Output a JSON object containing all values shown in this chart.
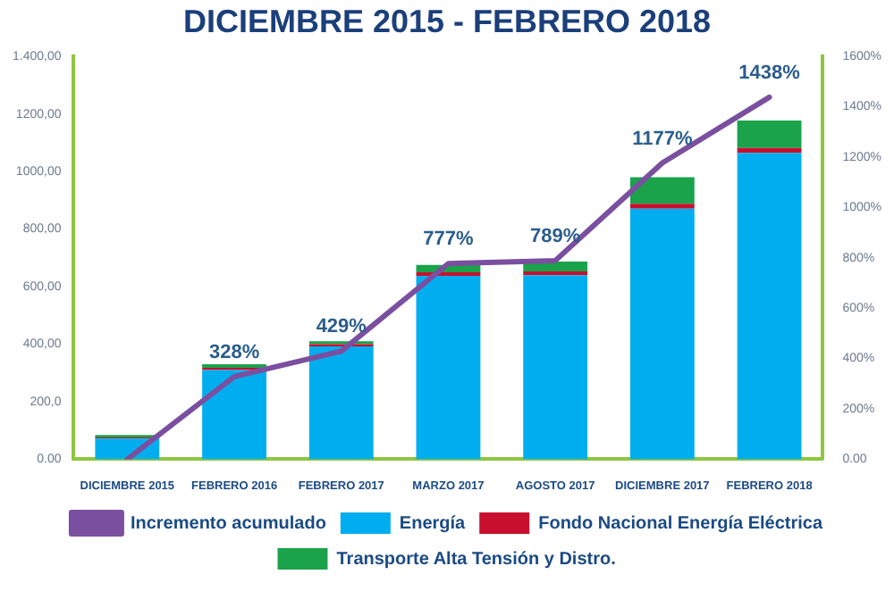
{
  "chart_data": {
    "type": "bar",
    "title": "DICIEMBRE 2015 - FEBRERO 2018",
    "stacked": true,
    "categories": [
      "DICIEMBRE 2015",
      "FEBRERO 2016",
      "FEBRERO 2017",
      "MARZO 2017",
      "AGOSTO 2017",
      "DICIEMBRE 2017",
      "FEBRERO 2018"
    ],
    "series": [
      {
        "name": "Energía",
        "color": "#00aeef",
        "values": [
          72,
          310,
          392,
          637,
          640,
          871,
          1065
        ]
      },
      {
        "name": "Fondo Nacional Energía Eléctrica",
        "color": "#c8102e",
        "values": [
          4,
          8,
          8,
          13,
          13,
          17,
          17
        ]
      },
      {
        "name": "Transporte Alta Tensión y Distro.",
        "color": "#1aa34a",
        "values": [
          8,
          12,
          10,
          25,
          34,
          92,
          95
        ]
      },
      {
        "name": "Incremento acumulado",
        "type": "line",
        "axis": "y2",
        "color": "#7b4fa0",
        "values": [
          0,
          328,
          429,
          777,
          789,
          1177,
          1438
        ],
        "value_labels": [
          null,
          "328%",
          "429%",
          "777%",
          "789%",
          "1177%",
          "1438%"
        ]
      }
    ],
    "ylim": [
      0,
      1400
    ],
    "yticks": [
      {
        "value": 0,
        "label": "0.00"
      },
      {
        "value": 200,
        "label": "200,0"
      },
      {
        "value": 400,
        "label": "400,00"
      },
      {
        "value": 600,
        "label": "600,00"
      },
      {
        "value": 800,
        "label": "800,00"
      },
      {
        "value": 1000,
        "label": "1000,00"
      },
      {
        "value": 1200,
        "label": "1200,00"
      },
      {
        "value": 1400,
        "label": "1.400,00"
      }
    ],
    "y2lim": [
      0,
      1600
    ],
    "y2ticks": [
      {
        "value": 0,
        "label": "0.00"
      },
      {
        "value": 200,
        "label": "200%"
      },
      {
        "value": 400,
        "label": "400%"
      },
      {
        "value": 600,
        "label": "600%"
      },
      {
        "value": 800,
        "label": "800%"
      },
      {
        "value": 1000,
        "label": "1000%"
      },
      {
        "value": 1200,
        "label": "1200%"
      },
      {
        "value": 1400,
        "label": "1400%"
      },
      {
        "value": 1600,
        "label": "1600%"
      }
    ],
    "grid": false,
    "legend": "bottom",
    "marker": "none"
  }
}
